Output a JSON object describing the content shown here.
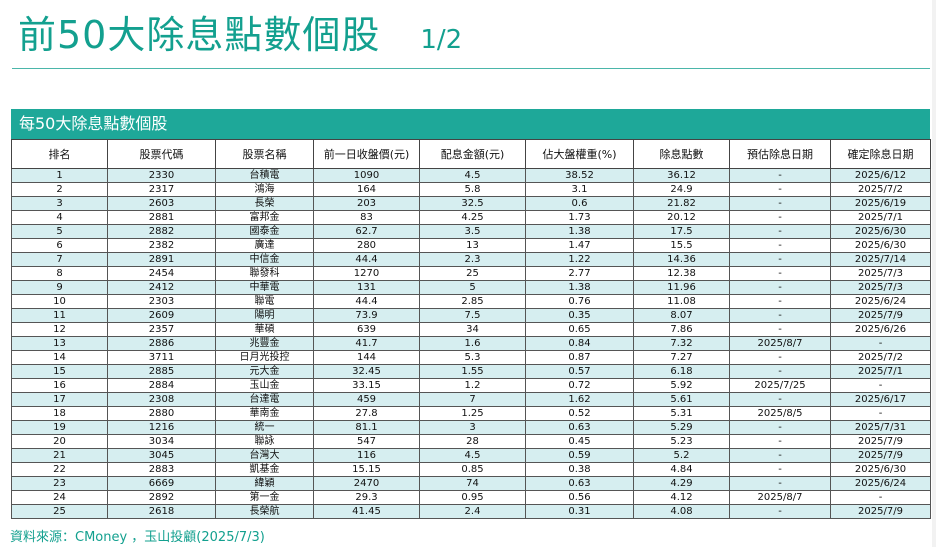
{
  "header": {
    "title": "前50大除息點數個股",
    "page_indicator": "1/2"
  },
  "table": {
    "caption": "每50大除息點數個股",
    "columns": [
      "排名",
      "股票代碼",
      "股票名稱",
      "前一日收盤價(元)",
      "配息金額(元)",
      "佔大盤權重(%)",
      "除息點數",
      "預估除息日期",
      "確定除息日期"
    ],
    "rows": [
      [
        "1",
        "2330",
        "台積電",
        "1090",
        "4.5",
        "38.52",
        "36.12",
        "-",
        "2025/6/12"
      ],
      [
        "2",
        "2317",
        "鴻海",
        "164",
        "5.8",
        "3.1",
        "24.9",
        "-",
        "2025/7/2"
      ],
      [
        "3",
        "2603",
        "長榮",
        "203",
        "32.5",
        "0.6",
        "21.82",
        "-",
        "2025/6/19"
      ],
      [
        "4",
        "2881",
        "富邦金",
        "83",
        "4.25",
        "1.73",
        "20.12",
        "-",
        "2025/7/1"
      ],
      [
        "5",
        "2882",
        "國泰金",
        "62.7",
        "3.5",
        "1.38",
        "17.5",
        "-",
        "2025/6/30"
      ],
      [
        "6",
        "2382",
        "廣達",
        "280",
        "13",
        "1.47",
        "15.5",
        "-",
        "2025/6/30"
      ],
      [
        "7",
        "2891",
        "中信金",
        "44.4",
        "2.3",
        "1.22",
        "14.36",
        "-",
        "2025/7/14"
      ],
      [
        "8",
        "2454",
        "聯發科",
        "1270",
        "25",
        "2.77",
        "12.38",
        "-",
        "2025/7/3"
      ],
      [
        "9",
        "2412",
        "中華電",
        "131",
        "5",
        "1.38",
        "11.96",
        "-",
        "2025/7/3"
      ],
      [
        "10",
        "2303",
        "聯電",
        "44.4",
        "2.85",
        "0.76",
        "11.08",
        "-",
        "2025/6/24"
      ],
      [
        "11",
        "2609",
        "陽明",
        "73.9",
        "7.5",
        "0.35",
        "8.07",
        "-",
        "2025/7/9"
      ],
      [
        "12",
        "2357",
        "華碩",
        "639",
        "34",
        "0.65",
        "7.86",
        "-",
        "2025/6/26"
      ],
      [
        "13",
        "2886",
        "兆豐金",
        "41.7",
        "1.6",
        "0.84",
        "7.32",
        "2025/8/7",
        "-"
      ],
      [
        "14",
        "3711",
        "日月光投控",
        "144",
        "5.3",
        "0.87",
        "7.27",
        "-",
        "2025/7/2"
      ],
      [
        "15",
        "2885",
        "元大金",
        "32.45",
        "1.55",
        "0.57",
        "6.18",
        "-",
        "2025/7/1"
      ],
      [
        "16",
        "2884",
        "玉山金",
        "33.15",
        "1.2",
        "0.72",
        "5.92",
        "2025/7/25",
        "-"
      ],
      [
        "17",
        "2308",
        "台達電",
        "459",
        "7",
        "1.62",
        "5.61",
        "-",
        "2025/6/17"
      ],
      [
        "18",
        "2880",
        "華南金",
        "27.8",
        "1.25",
        "0.52",
        "5.31",
        "2025/8/5",
        "-"
      ],
      [
        "19",
        "1216",
        "統一",
        "81.1",
        "3",
        "0.63",
        "5.29",
        "-",
        "2025/7/31"
      ],
      [
        "20",
        "3034",
        "聯詠",
        "547",
        "28",
        "0.45",
        "5.23",
        "-",
        "2025/7/9"
      ],
      [
        "21",
        "3045",
        "台灣大",
        "116",
        "4.5",
        "0.59",
        "5.2",
        "-",
        "2025/7/9"
      ],
      [
        "22",
        "2883",
        "凱基金",
        "15.15",
        "0.85",
        "0.38",
        "4.84",
        "-",
        "2025/6/30"
      ],
      [
        "23",
        "6669",
        "緯穎",
        "2470",
        "74",
        "0.63",
        "4.29",
        "-",
        "2025/6/24"
      ],
      [
        "24",
        "2892",
        "第一金",
        "29.3",
        "0.95",
        "0.56",
        "4.12",
        "2025/8/7",
        "-"
      ],
      [
        "25",
        "2618",
        "長榮航",
        "41.45",
        "2.4",
        "0.31",
        "4.08",
        "-",
        "2025/7/9"
      ]
    ]
  },
  "footer": {
    "source": "資料來源：CMoney ，玉山投顧(2025/7/3)"
  },
  "colors": {
    "accent": "#13a08f",
    "header_bar": "#1ea899",
    "row_stripe": "#d6eef0"
  }
}
